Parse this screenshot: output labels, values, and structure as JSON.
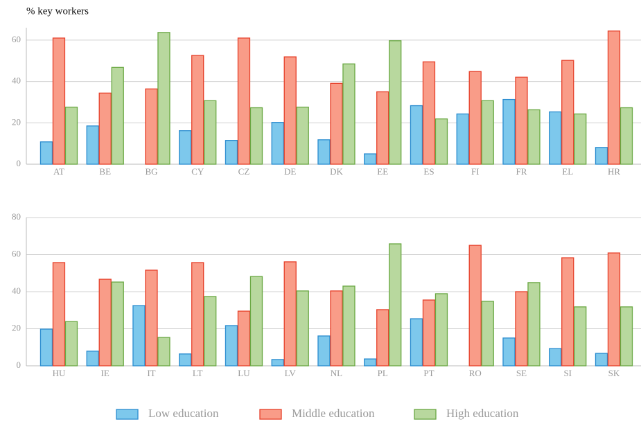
{
  "chart_data": [
    {
      "type": "bar",
      "title": "% key workers",
      "categories": [
        "AT",
        "BE",
        "BG",
        "CY",
        "CZ",
        "DE",
        "DK",
        "EE",
        "ES",
        "FI",
        "FR",
        "EL",
        "HR"
      ],
      "series": [
        {
          "name": "Low education",
          "color": "#7dc8ec",
          "edgecolor": "#2a8ccf",
          "values": [
            10.8,
            18.5,
            null,
            16.2,
            11.5,
            20.2,
            11.8,
            5,
            28.3,
            24.3,
            31.3,
            25.3,
            8.1
          ]
        },
        {
          "name": "Middle education",
          "color": "#f99c88",
          "edgecolor": "#e6402a",
          "values": [
            61,
            34.4,
            36.4,
            52.6,
            61,
            51.9,
            39.1,
            35,
            49.5,
            44.8,
            42.1,
            50.2,
            64.4
          ]
        },
        {
          "name": "High education",
          "color": "#b8d89e",
          "edgecolor": "#6aa843",
          "values": [
            27.6,
            46.8,
            63.7,
            30.7,
            27.3,
            27.6,
            48.5,
            59.7,
            21.9,
            30.7,
            26.3,
            24.3,
            27.3
          ]
        }
      ],
      "ylim": [
        0,
        66
      ],
      "yticks": [
        0,
        20,
        40,
        60
      ],
      "grid": true
    },
    {
      "type": "bar",
      "categories": [
        "HU",
        "IE",
        "IT",
        "LT",
        "LU",
        "LV",
        "NL",
        "PL",
        "PT",
        "RO",
        "SE",
        "SI",
        "SK"
      ],
      "series": [
        {
          "color": "#7dc8ec",
          "edgecolor": "#2a8ccf",
          "values": [
            19.8,
            7.9,
            32.5,
            6.4,
            21.7,
            3.4,
            16.1,
            3.7,
            25.4,
            null,
            15,
            9.3,
            6.7
          ]
        },
        {
          "color": "#f99c88",
          "edgecolor": "#e6402a",
          "values": [
            55.7,
            46.7,
            51.6,
            55.7,
            29.5,
            56.1,
            40.4,
            30.3,
            35.5,
            65,
            40,
            58.3,
            60.9
          ]
        },
        {
          "color": "#b8d89e",
          "edgecolor": "#6aa843",
          "values": [
            23.9,
            45.2,
            15.3,
            37.4,
            48.2,
            40.4,
            43,
            65.8,
            38.9,
            34.8,
            44.9,
            31.8,
            31.8
          ]
        }
      ],
      "ylim": [
        0,
        80
      ],
      "yticks": [
        0,
        20,
        40,
        60,
        80
      ],
      "grid": true
    }
  ]
}
